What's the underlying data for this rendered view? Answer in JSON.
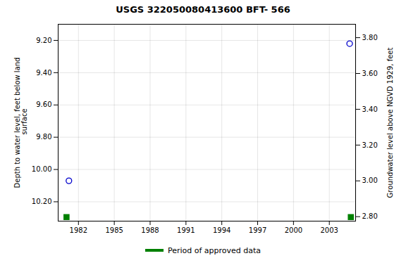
{
  "chart_data": {
    "type": "scatter",
    "title": "USGS 322050080413600 BFT- 566",
    "ylabel": "Depth to water level, feet below land\n surface",
    "y2label": "Groundwater level above NGVD 1929, feet",
    "xlim": [
      1980.3,
      2005.2
    ],
    "xticks": [
      1982,
      1985,
      1988,
      1991,
      1994,
      1997,
      2000,
      2003
    ],
    "ylim": [
      10.32,
      9.1
    ],
    "yticks": [
      {
        "value": 9.2,
        "label": "9.20"
      },
      {
        "value": 9.4,
        "label": "9.40"
      },
      {
        "value": 9.6,
        "label": "9.60"
      },
      {
        "value": 9.8,
        "label": "9.80"
      },
      {
        "value": 10.0,
        "label": "10.00"
      },
      {
        "value": 10.2,
        "label": "10.20"
      }
    ],
    "y2lim": [
      2.775,
      3.875
    ],
    "y2ticks": [
      {
        "value": 2.8,
        "label": "2.80"
      },
      {
        "value": 3.0,
        "label": "3.00"
      },
      {
        "value": 3.2,
        "label": "3.20"
      },
      {
        "value": 3.4,
        "label": "3.40"
      },
      {
        "value": 3.6,
        "label": "3.60"
      },
      {
        "value": 3.8,
        "label": "3.80"
      }
    ],
    "grid": true,
    "legend": "bottom",
    "series": [
      {
        "color": "#0000cc",
        "marker": "open_circle",
        "x": [
          1981.2,
          2004.7
        ],
        "values": [
          10.07,
          9.22
        ]
      },
      {
        "name": "Period of approved data",
        "color": "#008000",
        "marker": "square",
        "x": [
          1981.0,
          2004.8
        ],
        "values": [
          10.295,
          10.295
        ]
      }
    ]
  }
}
